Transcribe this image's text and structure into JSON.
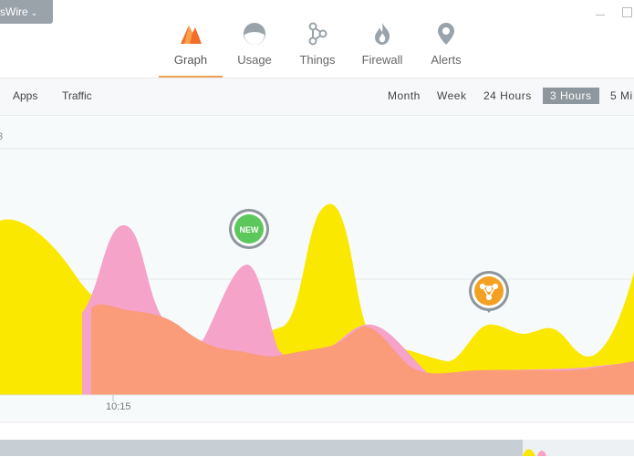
{
  "header": {
    "app_dropdown_label": "sWire",
    "nav": [
      {
        "label": "Graph",
        "icon": "graph-icon",
        "active": true
      },
      {
        "label": "Usage",
        "icon": "usage-icon",
        "active": false
      },
      {
        "label": "Things",
        "icon": "things-icon",
        "active": false
      },
      {
        "label": "Firewall",
        "icon": "firewall-icon",
        "active": false
      },
      {
        "label": "Alerts",
        "icon": "alerts-icon",
        "active": false
      }
    ],
    "accent_color": "#f0a050"
  },
  "subbar": {
    "view_tabs": [
      "Apps",
      "Traffic"
    ],
    "time_ranges": [
      "Month",
      "Week",
      "24 Hours",
      "3 Hours",
      "5 Mi"
    ],
    "selected_range": "3 Hours"
  },
  "chart": {
    "y_tick_partial": "3",
    "x_tick": "10:15",
    "markers": [
      {
        "label": "NEW",
        "color": "#5cc85c"
      },
      {
        "label": "",
        "icon": "network-device-icon",
        "color": "#f4a023"
      }
    ],
    "series_colors": [
      "#fbe800",
      "#f5a3c8",
      "#fa9b7a"
    ]
  }
}
